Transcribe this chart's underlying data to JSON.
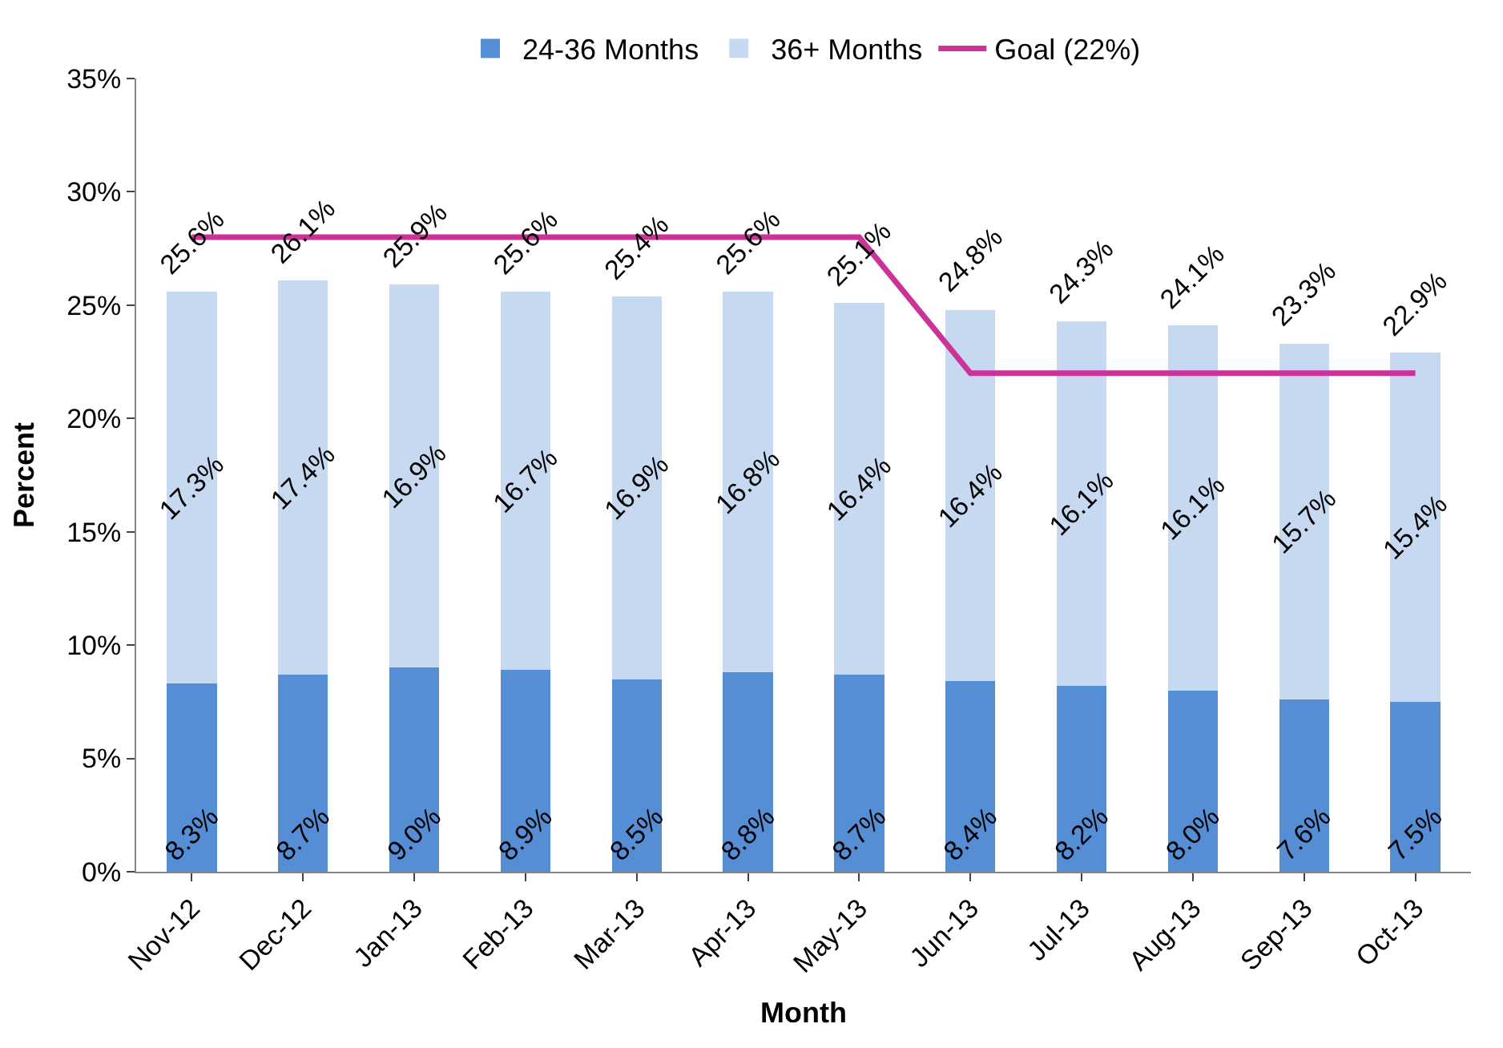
{
  "chart_data": {
    "type": "bar",
    "stacked": true,
    "xlabel": "Month",
    "ylabel": "Percent",
    "categories": [
      "Nov-12",
      "Dec-12",
      "Jan-13",
      "Feb-13",
      "Mar-13",
      "Apr-13",
      "May-13",
      "Jun-13",
      "Jul-13",
      "Aug-13",
      "Sep-13",
      "Oct-13"
    ],
    "series": [
      {
        "name": "24-36 Months",
        "color": "#558ed5",
        "values": [
          8.3,
          8.7,
          9.0,
          8.9,
          8.5,
          8.8,
          8.7,
          8.4,
          8.2,
          8.0,
          7.6,
          7.5
        ],
        "value_labels": [
          "8.3%",
          "8.7%",
          "9.0%",
          "8.9%",
          "8.5%",
          "8.8%",
          "8.7%",
          "8.4%",
          "8.2%",
          "8.0%",
          "7.6%",
          "7.5%"
        ]
      },
      {
        "name": "36+ Months",
        "color": "#c6d9f1",
        "values": [
          17.3,
          17.4,
          16.9,
          16.7,
          16.9,
          16.8,
          16.4,
          16.4,
          16.1,
          16.1,
          15.7,
          15.4
        ],
        "value_labels": [
          "17.3%",
          "17.4%",
          "16.9%",
          "16.7%",
          "16.9%",
          "16.8%",
          "16.4%",
          "16.4%",
          "16.1%",
          "16.1%",
          "15.7%",
          "15.4%"
        ]
      },
      {
        "name": "Goal (22%)",
        "type": "line",
        "color": "#cc3399",
        "values": [
          28,
          28,
          28,
          28,
          28,
          28,
          28,
          22,
          22,
          22,
          22,
          22
        ]
      }
    ],
    "totals": [
      "25.6%",
      "26.1%",
      "25.9%",
      "25.6%",
      "25.4%",
      "25.6%",
      "25.1%",
      "24.8%",
      "24.3%",
      "24.1%",
      "23.3%",
      "22.9%"
    ],
    "ylim": [
      0,
      35
    ],
    "yticks": [
      {
        "value": 0,
        "label": "0%"
      },
      {
        "value": 5,
        "label": "5%"
      },
      {
        "value": 10,
        "label": "10%"
      },
      {
        "value": 15,
        "label": "15%"
      },
      {
        "value": 20,
        "label": "20%"
      },
      {
        "value": 25,
        "label": "25%"
      },
      {
        "value": 30,
        "label": "30%"
      },
      {
        "value": 35,
        "label": "35%"
      }
    ],
    "legend": "top",
    "marker": "none",
    "line_style": "solid"
  }
}
